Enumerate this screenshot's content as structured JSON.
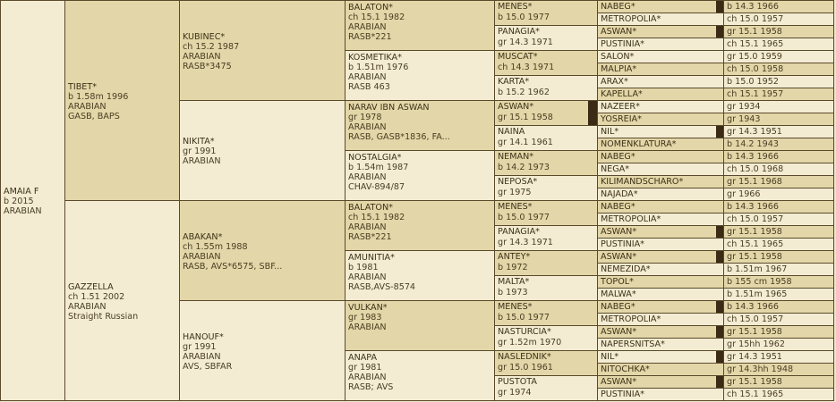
{
  "horse": {
    "name": "AMAIA F",
    "details": [
      "b 2015",
      "ARABIAN"
    ]
  },
  "g1": [
    {
      "name": "TIBET*",
      "details": [
        "b 1.58m 1996",
        "ARABIAN",
        "GASB, BAPS"
      ]
    },
    {
      "name": "GAZZELLA",
      "details": [
        "ch 1.51 2002",
        "ARABIAN",
        "Straight Russian"
      ]
    }
  ],
  "g2": [
    {
      "name": "KUBINEC*",
      "details": [
        "ch 15.2 1987",
        "ARABIAN",
        "RASB*3475"
      ]
    },
    {
      "name": "NIKITA*",
      "details": [
        "gr 1991",
        "ARABIAN"
      ]
    },
    {
      "name": "ABAKAN*",
      "details": [
        "ch 1.55m 1988",
        "ARABIAN",
        "RASB, AVS*6575, SBF..."
      ]
    },
    {
      "name": "HANOUF*",
      "details": [
        "gr 1991",
        "ARABIAN",
        "AVS, SBFAR"
      ]
    }
  ],
  "g3": [
    {
      "name": "BALATON*",
      "details": [
        "ch 15.1 1982",
        "ARABIAN",
        "RASB*221"
      ]
    },
    {
      "name": "KOSMETIKA*",
      "details": [
        "b 1.51m 1976",
        "ARABIAN",
        "RASB 463"
      ]
    },
    {
      "name": "NARAV IBN ASWAN",
      "details": [
        "gr 1978",
        "ARABIAN",
        "RASB, GASB*1836, FA..."
      ]
    },
    {
      "name": "NOSTALGIA*",
      "details": [
        "b 1.54m 1987",
        "ARABIAN",
        "CHAV-894/87"
      ]
    },
    {
      "name": "BALATON*",
      "details": [
        "ch 15.1 1982",
        "ARABIAN",
        "RASB*221"
      ]
    },
    {
      "name": "AMUNITIA*",
      "details": [
        "b 1981",
        "ARABIAN",
        "RASB,AVS-8574"
      ]
    },
    {
      "name": "VULKAN*",
      "details": [
        "gr 1983",
        "ARABIAN"
      ]
    },
    {
      "name": "ANAPA",
      "details": [
        "gr 1981",
        "ARABIAN",
        "RASB; AVS"
      ]
    }
  ],
  "g4": [
    {
      "name": "MENES*",
      "details": [
        "b 15.0 1977"
      ]
    },
    {
      "name": "PANAGIA*",
      "details": [
        "gr 14.3 1971"
      ]
    },
    {
      "name": "MUSCAT*",
      "details": [
        "ch 14.3 1971"
      ]
    },
    {
      "name": "KARTA*",
      "details": [
        "b 15.2 1962"
      ]
    },
    {
      "name": "ASWAN*",
      "details": [
        "gr 15.1 1958"
      ]
    },
    {
      "name": "NAINA",
      "details": [
        "gr 14.1 1961"
      ]
    },
    {
      "name": "NEMAN*",
      "details": [
        "b 14.2 1973"
      ]
    },
    {
      "name": "NEPOSA*",
      "details": [
        "gr 1975"
      ]
    },
    {
      "name": "MENES*",
      "details": [
        "b 15.0 1977"
      ]
    },
    {
      "name": "PANAGIA*",
      "details": [
        "gr 14.3 1971"
      ]
    },
    {
      "name": "ANTEY*",
      "details": [
        "b 1972"
      ]
    },
    {
      "name": "MALTA*",
      "details": [
        "b 1973"
      ]
    },
    {
      "name": "MENES*",
      "details": [
        "b 15.0 1977"
      ]
    },
    {
      "name": "NASTURCIA*",
      "details": [
        "gr 1.52m 1970"
      ]
    },
    {
      "name": "NASLEDNIK*",
      "details": [
        "gr 15.0 1961"
      ]
    },
    {
      "name": "PUSTOTA",
      "details": [
        "gr 1974"
      ]
    }
  ],
  "g5": [
    "NABEG*",
    "METROPOLIA*",
    "ASWAN*",
    "PUSTINIA*",
    "SALON*",
    "MALPIA*",
    "ARAX*",
    "KAPELLA*",
    "NAZEER*",
    "YOSREIA*",
    "NIL*",
    "NOMENKLATURA*",
    "NABEG*",
    "NEGA*",
    "KILIMANDSCHARO*",
    "NAJADA*",
    "NABEG*",
    "METROPOLIA*",
    "ASWAN*",
    "PUSTINIA*",
    "ASWAN*",
    "NEMEZIDA*",
    "TOPOL*",
    "MALWA*",
    "NABEG*",
    "METROPOLIA*",
    "ASWAN*",
    "NAPERSNITSA*",
    "NIL*",
    "NITOCHKA*",
    "ASWAN*",
    "PUSTINIA*"
  ],
  "g6": [
    "b 14.3 1966",
    "ch 15.0 1957",
    "gr 15.1 1958",
    "ch 15.1 1965",
    "gr 15.0 1959",
    "ch 15.0 1958",
    "b 15.0 1952",
    "ch 15.1 1957",
    "gr 1934",
    "gr 1943",
    "gr 14.3 1951",
    "b 14.2 1943",
    "b 14.3 1966",
    "ch 15.0 1968",
    "gr 15.1 1968",
    "gr 1966",
    "b 14.3 1966",
    "ch 15.0 1957",
    "gr 15.1 1958",
    "ch 15.1 1965",
    "gr 15.1 1958",
    "b 1.51m 1967",
    "b 155 cm 1958",
    "b 1.51m 1965",
    "b 14.3 1966",
    "ch 15.0 1957",
    "gr 15.1 1958",
    "gr 15hh 1962",
    "gr 14.3 1951",
    "gr 14.3hh 1948",
    "gr 15.1 1958",
    "ch 15.1 1965"
  ],
  "colors": {
    "dark": "#e3d6a8",
    "light": "#f3ecd2",
    "border": "#5a4a2c",
    "text": "#4a3e24",
    "marker": "#3b2a14"
  }
}
